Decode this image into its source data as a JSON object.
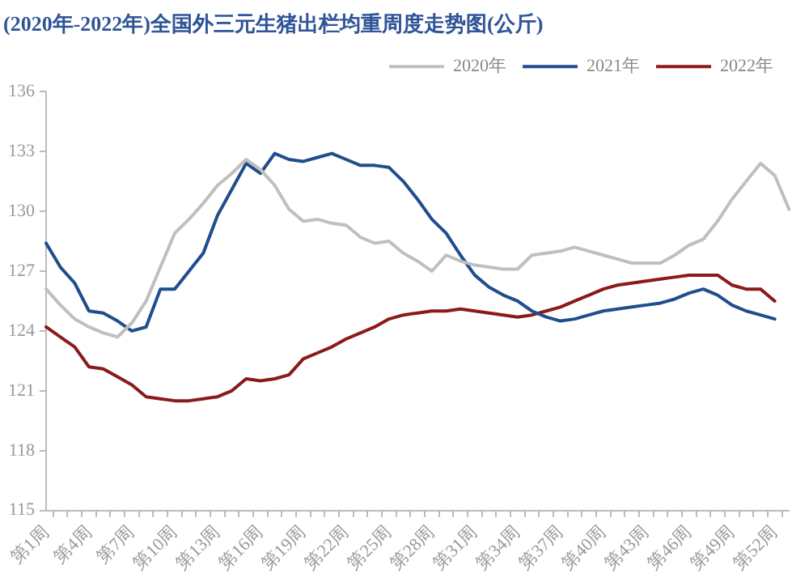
{
  "chart_data": {
    "type": "line",
    "title": "(2020年-2022年)全国外三元生猪出栏均重周度走势图(公斤)",
    "categories": [
      "第1周",
      null,
      null,
      "第4周",
      null,
      null,
      "第7周",
      null,
      null,
      "第10周",
      null,
      null,
      "第13周",
      null,
      null,
      "第16周",
      null,
      null,
      "第19周",
      null,
      null,
      "第22周",
      null,
      null,
      "第25周",
      null,
      null,
      "第28周",
      null,
      null,
      "第31周",
      null,
      null,
      "第34周",
      null,
      null,
      "第37周",
      null,
      null,
      "第40周",
      null,
      null,
      "第43周",
      null,
      null,
      "第46周",
      null,
      null,
      "第49周",
      null,
      null,
      "第52周",
      null
    ],
    "series": [
      {
        "name": "2020年",
        "color": "#bfbfbf",
        "values": [
          126.1,
          125.3,
          124.6,
          124.2,
          123.9,
          123.7,
          124.4,
          125.5,
          127.2,
          128.9,
          129.6,
          130.4,
          131.3,
          131.9,
          132.6,
          132.1,
          131.3,
          130.1,
          129.5,
          129.6,
          129.4,
          129.3,
          128.7,
          128.4,
          128.5,
          127.9,
          127.5,
          127.0,
          127.8,
          127.5,
          127.3,
          127.2,
          127.1,
          127.1,
          127.8,
          127.9,
          128.0,
          128.2,
          128.0,
          127.8,
          127.6,
          127.4,
          127.4,
          127.4,
          127.8,
          128.3,
          128.6,
          129.5,
          130.6,
          131.5,
          132.4,
          131.8,
          130.1
        ]
      },
      {
        "name": "2021年",
        "color": "#1f4e8c",
        "values": [
          128.4,
          127.2,
          126.4,
          125.0,
          124.9,
          124.5,
          124.0,
          124.2,
          126.1,
          126.1,
          127.0,
          127.9,
          129.8,
          131.1,
          132.4,
          131.9,
          132.9,
          132.6,
          132.5,
          132.7,
          132.9,
          132.6,
          132.3,
          132.3,
          132.2,
          131.5,
          130.6,
          129.6,
          128.9,
          127.8,
          126.8,
          126.2,
          125.8,
          125.5,
          125.0,
          124.7,
          124.5,
          124.6,
          124.8,
          125.0,
          125.1,
          125.2,
          125.3,
          125.4,
          125.6,
          125.9,
          126.1,
          125.8,
          125.3,
          125.0,
          124.8,
          124.6,
          null
        ]
      },
      {
        "name": "2022年",
        "color": "#8b1a1a",
        "values": [
          124.2,
          123.7,
          123.2,
          122.2,
          122.1,
          121.7,
          121.3,
          120.7,
          120.6,
          120.5,
          120.5,
          120.6,
          120.7,
          121.0,
          121.6,
          121.5,
          121.6,
          121.8,
          122.6,
          122.9,
          123.2,
          123.6,
          123.9,
          124.2,
          124.6,
          124.8,
          124.9,
          125.0,
          125.0,
          125.1,
          125.0,
          124.9,
          124.8,
          124.7,
          124.8,
          125.0,
          125.2,
          125.5,
          125.8,
          126.1,
          126.3,
          126.4,
          126.5,
          126.6,
          126.7,
          126.8,
          126.8,
          126.8,
          126.3,
          126.1,
          126.1,
          125.5,
          null
        ]
      }
    ],
    "ylim": [
      115,
      136
    ],
    "yticks": [
      115,
      118,
      121,
      124,
      127,
      130,
      133,
      136
    ],
    "grid": false,
    "legend": "top right",
    "marker": "none",
    "line_style": "solid"
  }
}
